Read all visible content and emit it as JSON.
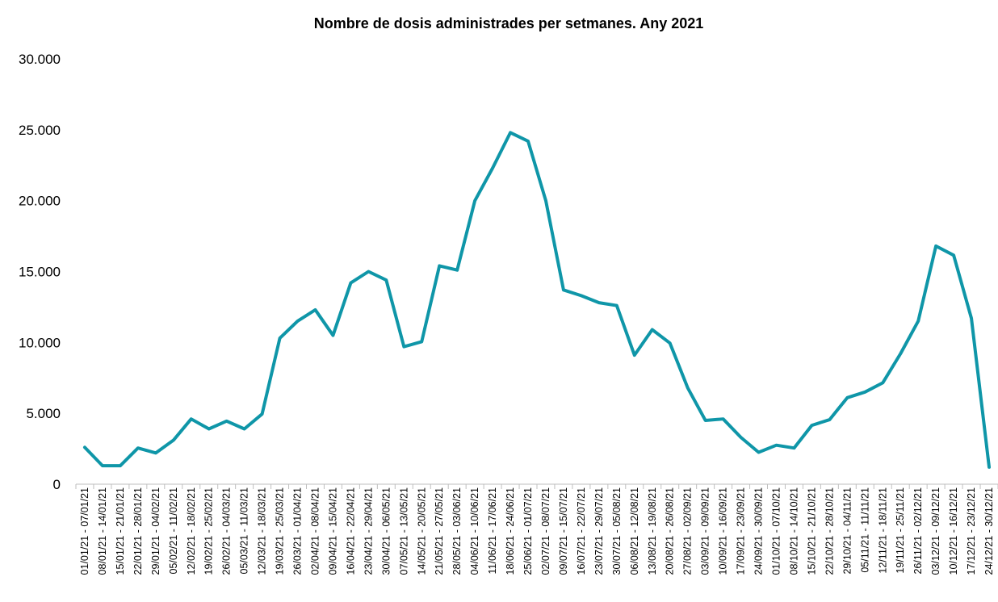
{
  "chart_data": {
    "type": "line",
    "title": "Nombre de dosis administrades per setmanes. Any 2021",
    "xlabel": "",
    "ylabel": "",
    "ylim": [
      0,
      30000
    ],
    "yticks": [
      0,
      5000,
      10000,
      15000,
      20000,
      25000,
      30000
    ],
    "ytick_labels": [
      "0",
      "5.000",
      "10.000",
      "15.000",
      "20.000",
      "25.000",
      "30.000"
    ],
    "grid": false,
    "legend": "none",
    "line_color": "#0f96a8",
    "categories": [
      "01/01/21 - 07/01/21",
      "08/01/21 - 14/01/21",
      "15/01/21 - 21/01/21",
      "22/01/21 - 28/01/21",
      "29/01/21 - 04/02/21",
      "05/02/21 - 11/02/21",
      "12/02/21 - 18/02/21",
      "19/02/21 - 25/02/21",
      "26/02/21 - 04/03/21",
      "05/03/21 - 11/03/21",
      "12/03/21 - 18/03/21",
      "19/03/21 - 25/03/21",
      "26/03/21 - 01/04/21",
      "02/04/21 - 08/04/21",
      "09/04/21 - 15/04/21",
      "16/04/21 - 22/04/21",
      "23/04/21 - 29/04/21",
      "30/04/21 - 06/05/21",
      "07/05/21 - 13/05/21",
      "14/05/21 - 20/05/21",
      "21/05/21 - 27/05/21",
      "28/05/21 - 03/06/21",
      "04/06/21 - 10/06/21",
      "11/06/21 - 17/06/21",
      "18/06/21 - 24/06/21",
      "25/06/21 - 01/07/21",
      "02/07/21 - 08/07/21",
      "09/07/21 - 15/07/21",
      "16/07/21 - 22/07/21",
      "23/07/21 - 29/07/21",
      "30/07/21 - 05/08/21",
      "06/08/21 - 12/08/21",
      "13/08/21 - 19/08/21",
      "20/08/21 - 26/08/21",
      "27/08/21 - 02/09/21",
      "03/09/21 - 09/09/21",
      "10/09/21 - 16/09/21",
      "17/09/21 - 23/09/21",
      "24/09/21 - 30/09/21",
      "01/10/21 - 07/10/21",
      "08/10/21 - 14/10/21",
      "15/10/21 - 21/10/21",
      "22/10/21 - 28/10/21",
      "29/10/21 - 04/11/21",
      "05/11/21 - 11/11/21",
      "12/11/21 - 18/11/21",
      "19/11/21 - 25/11/21",
      "26/11/21 - 02/12/21",
      "03/12/21 - 09/12/21",
      "10/12/21 - 16/12/21",
      "17/12/21 - 23/12/21",
      "24/12/21 - 30/12/21"
    ],
    "series": [
      {
        "name": "",
        "values": [
          2600,
          1300,
          1300,
          2550,
          2200,
          3100,
          4600,
          3900,
          4450,
          3900,
          4950,
          10300,
          11500,
          12300,
          10500,
          14200,
          15000,
          14400,
          9700,
          10050,
          15400,
          15100,
          20000,
          22300,
          24800,
          24200,
          20000,
          13700,
          13300,
          12800,
          12600,
          9100,
          10900,
          9950,
          6800,
          4500,
          4600,
          3300,
          2250,
          2750,
          2550,
          4150,
          4550,
          6100,
          6500,
          7150,
          9200,
          11500,
          16800,
          16150,
          11700,
          1200
        ]
      }
    ]
  }
}
